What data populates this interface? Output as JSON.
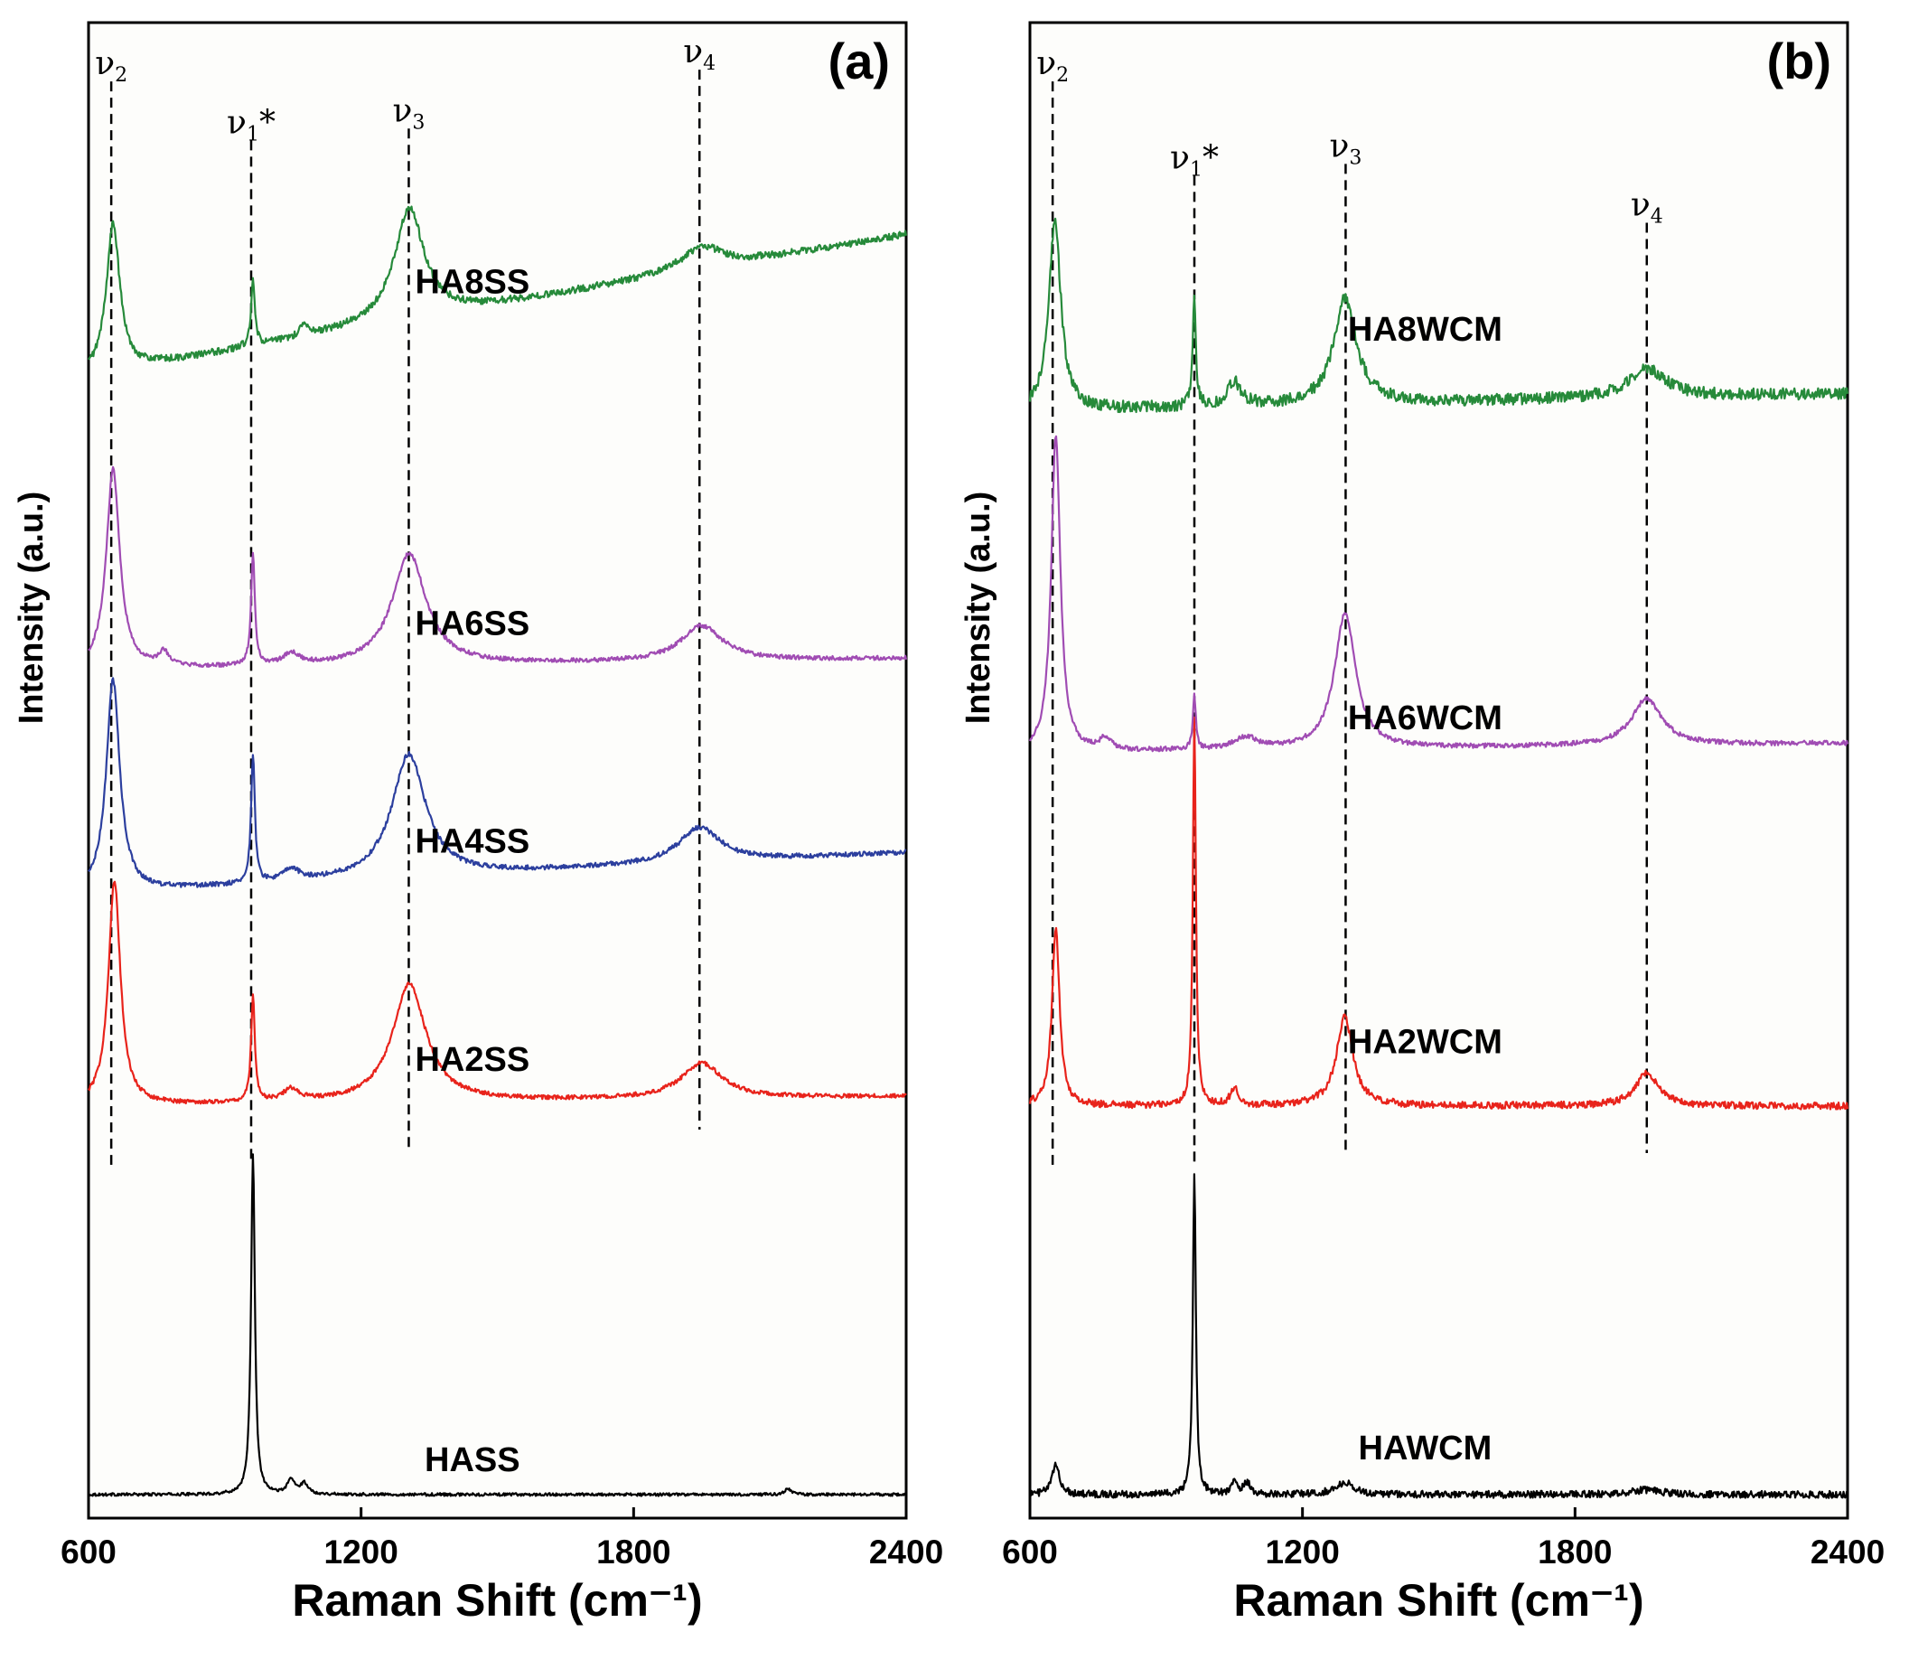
{
  "chart_data": [
    {
      "type": "line",
      "panel": "(a)",
      "xlabel": "Raman Shift (cm⁻¹)",
      "ylabel": "Intensity (a.u.)",
      "xlim": [
        600,
        2400
      ],
      "xticks": [
        600,
        1200,
        1800,
        2400
      ],
      "xtick_labels": [
        "600",
        "1200",
        "1800",
        "2400"
      ],
      "ylim": [
        -0.2,
        12.5
      ],
      "yticks": "none",
      "modes": [
        {
          "name": "v2",
          "symbol": "ν",
          "sub": "2",
          "star": "",
          "x": 650,
          "y_top": 12.0,
          "y_bottom": 2.8
        },
        {
          "name": "v1*",
          "symbol": "ν",
          "sub": "1",
          "star": "*",
          "x": 958,
          "y_top": 11.5,
          "y_bottom": 2.8
        },
        {
          "name": "v3",
          "symbol": "ν",
          "sub": "3",
          "star": "",
          "x": 1305,
          "y_top": 11.6,
          "y_bottom": 2.9
        },
        {
          "name": "v4",
          "symbol": "ν",
          "sub": "4",
          "star": "",
          "x": 1945,
          "y_top": 12.1,
          "y_bottom": 3.1
        }
      ],
      "series": [
        {
          "name": "HASS",
          "label": "HASS",
          "color": "#000000",
          "baseline": 0.0,
          "peaks": [
            [
              962,
              2.9,
              5
            ],
            [
              1046,
              0.12,
              10
            ],
            [
              1075,
              0.09,
              10
            ],
            [
              2140,
              0.05,
              8
            ]
          ],
          "slope": 0,
          "noise": 0.012,
          "label_x": 1445,
          "label_y": 0.2
        },
        {
          "name": "HA2SS",
          "label": "HA2SS",
          "color": "#e8231b",
          "baseline": 3.3,
          "peaks": [
            [
              657,
              1.9,
              16
            ],
            [
              962,
              0.9,
              5
            ],
            [
              1046,
              0.1,
              22
            ],
            [
              1306,
              1.0,
              45
            ],
            [
              1950,
              0.3,
              55
            ]
          ],
          "slope": 0.08,
          "noise": 0.018,
          "label_x": 1445,
          "label_y": 3.6
        },
        {
          "name": "HA4SS",
          "label": "HA4SS",
          "color": "#2c3f9e",
          "baseline": 5.1,
          "peaks": [
            [
              654,
              1.8,
              18
            ],
            [
              962,
              1.1,
              5
            ],
            [
              1046,
              0.1,
              22
            ],
            [
              1305,
              1.05,
              45
            ],
            [
              1945,
              0.3,
              55
            ]
          ],
          "slope": 0.35,
          "noise": 0.02,
          "label_x": 1445,
          "label_y": 5.45
        },
        {
          "name": "HA6SS",
          "label": "HA6SS",
          "color": "#a04cb3",
          "baseline": 7.0,
          "peaks": [
            [
              654,
              1.7,
              18
            ],
            [
              766,
              0.12,
              14
            ],
            [
              962,
              0.95,
              5
            ],
            [
              1046,
              0.1,
              22
            ],
            [
              1306,
              0.95,
              45
            ],
            [
              1950,
              0.3,
              55
            ]
          ],
          "slope": 0.1,
          "noise": 0.018,
          "label_x": 1445,
          "label_y": 7.3
        },
        {
          "name": "HA8SS",
          "label": "HA8SS",
          "color": "#268a3a",
          "baseline": 9.5,
          "peaks": [
            [
              654,
              1.25,
              18
            ],
            [
              962,
              0.55,
              5
            ],
            [
              1075,
              0.12,
              10
            ],
            [
              1306,
              0.95,
              40
            ],
            [
              1950,
              0.2,
              55
            ]
          ],
          "slope": 1.2,
          "noise": 0.03,
          "label_x": 1445,
          "label_y": 10.2
        }
      ]
    },
    {
      "type": "line",
      "panel": "(b)",
      "xlabel": "Raman Shift (cm⁻¹)",
      "ylabel": "Intensity (a.u.)",
      "xlim": [
        600,
        2400
      ],
      "xticks": [
        600,
        1200,
        1800,
        2400
      ],
      "xtick_labels": [
        "600",
        "1200",
        "1800",
        "2400"
      ],
      "ylim": [
        -0.2,
        12.5
      ],
      "yticks": "none",
      "modes": [
        {
          "name": "v2",
          "symbol": "ν",
          "sub": "2",
          "star": "",
          "x": 650,
          "y_top": 12.0,
          "y_bottom": 2.8
        },
        {
          "name": "v1*",
          "symbol": "ν",
          "sub": "1",
          "star": "*",
          "x": 962,
          "y_top": 11.2,
          "y_bottom": 2.8
        },
        {
          "name": "v3",
          "symbol": "ν",
          "sub": "3",
          "star": "",
          "x": 1295,
          "y_top": 11.3,
          "y_bottom": 2.9
        },
        {
          "name": "v4",
          "symbol": "ν",
          "sub": "4",
          "star": "",
          "x": 1958,
          "y_top": 10.8,
          "y_bottom": 2.9
        }
      ],
      "series": [
        {
          "name": "HAWCM",
          "label": "HAWCM",
          "color": "#000000",
          "baseline": 0.0,
          "peaks": [
            [
              657,
              0.25,
              10
            ],
            [
              962,
              2.75,
              4
            ],
            [
              1050,
              0.12,
              8
            ],
            [
              1078,
              0.1,
              8
            ],
            [
              1293,
              0.1,
              25
            ],
            [
              1958,
              0.04,
              40
            ]
          ],
          "slope": 0,
          "noise": 0.03,
          "label_x": 1470,
          "label_y": 0.3
        },
        {
          "name": "HA2WCM",
          "label": "HA2WCM",
          "color": "#e8231b",
          "baseline": 3.3,
          "peaks": [
            [
              657,
              1.5,
              10
            ],
            [
              962,
              3.3,
              4
            ],
            [
              1050,
              0.15,
              10
            ],
            [
              1293,
              0.75,
              22
            ],
            [
              1958,
              0.28,
              30
            ]
          ],
          "slope": 0,
          "noise": 0.03,
          "label_x": 1470,
          "label_y": 3.75
        },
        {
          "name": "HA6WCM",
          "label": "HA6WCM",
          "color": "#a04cb3",
          "baseline": 6.3,
          "peaks": [
            [
              657,
              2.7,
              12
            ],
            [
              766,
              0.1,
              15
            ],
            [
              962,
              0.45,
              4
            ],
            [
              1075,
              0.1,
              30
            ],
            [
              1294,
              1.15,
              28
            ],
            [
              1958,
              0.4,
              40
            ]
          ],
          "slope": 0.08,
          "noise": 0.02,
          "label_x": 1470,
          "label_y": 6.5
        },
        {
          "name": "HA8WCM",
          "label": "HA8WCM",
          "color": "#268a3a",
          "baseline": 9.2,
          "peaks": [
            [
              655,
              1.6,
              16
            ],
            [
              962,
              0.95,
              4
            ],
            [
              1050,
              0.2,
              18
            ],
            [
              1294,
              0.9,
              30
            ],
            [
              1958,
              0.25,
              50
            ]
          ],
          "slope": 0.15,
          "noise": 0.05,
          "label_x": 1470,
          "label_y": 9.8
        }
      ]
    }
  ]
}
